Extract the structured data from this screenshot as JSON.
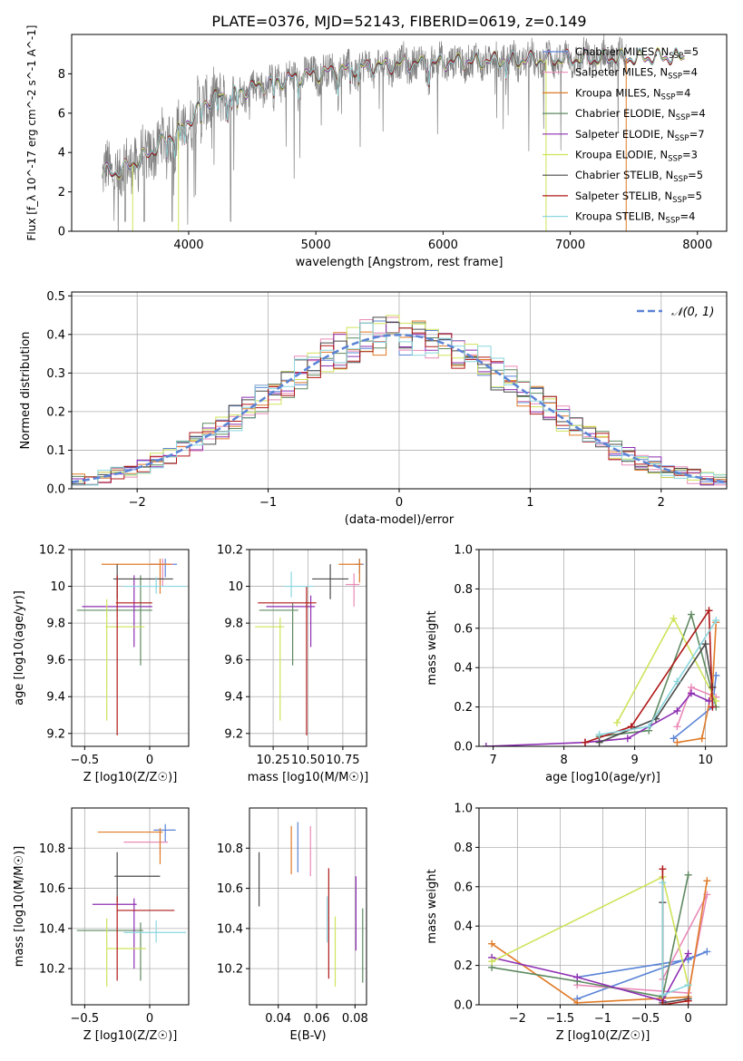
{
  "title": "PLATE=0376, MJD=52143, FIBERID=0619, z=0.149",
  "colors": {
    "Chabrier MILES": "#5b84d6",
    "Salpeter MILES": "#e98bb8",
    "Kroupa MILES": "#e07b28",
    "Chabrier ELODIE": "#5f8a62",
    "Salpeter ELODIE": "#8e2fb3",
    "Kroupa ELODIE": "#cfe35a",
    "Chabrier STELIB": "#4a4a4a",
    "Salpeter STELIB": "#b01818",
    "Kroupa STELIB": "#8ad6de",
    "data": "#808080"
  },
  "chart_data": [
    {
      "id": "spectrum",
      "type": "line",
      "xlabel": "wavelength [Angstrom, rest frame]",
      "ylabel": "Flux [f_λ 10^-17 erg cm^-2 s^-1 A^-1]",
      "xlim": [
        3080,
        8230
      ],
      "ylim": [
        0,
        10
      ],
      "xticks": [
        4000,
        5000,
        6000,
        7000,
        8000
      ],
      "yticks": [
        0,
        2,
        4,
        6,
        8
      ],
      "legend": "top-right",
      "legend_entries": [
        {
          "model": "Chabrier MILES",
          "nssp": 5
        },
        {
          "model": "Salpeter MILES",
          "nssp": 4
        },
        {
          "model": "Kroupa MILES",
          "nssp": 4
        },
        {
          "model": "Chabrier ELODIE",
          "nssp": 4
        },
        {
          "model": "Salpeter ELODIE",
          "nssp": 7
        },
        {
          "model": "Kroupa ELODIE",
          "nssp": 3
        },
        {
          "model": "Chabrier STELIB",
          "nssp": 5
        },
        {
          "model": "Salpeter STELIB",
          "nssp": 5
        },
        {
          "model": "Kroupa STELIB",
          "nssp": 4
        }
      ],
      "continuum": [
        [
          3320,
          3.0
        ],
        [
          3450,
          3.0
        ],
        [
          3550,
          3.4
        ],
        [
          3700,
          4.0
        ],
        [
          3800,
          4.6
        ],
        [
          3900,
          5.0
        ],
        [
          4000,
          5.6
        ],
        [
          4100,
          6.4
        ],
        [
          4200,
          6.8
        ],
        [
          4300,
          6.9
        ],
        [
          4400,
          7.1
        ],
        [
          4500,
          7.3
        ],
        [
          4700,
          7.6
        ],
        [
          4900,
          7.9
        ],
        [
          5100,
          8.1
        ],
        [
          5300,
          8.3
        ],
        [
          5500,
          8.4
        ],
        [
          5700,
          8.5
        ],
        [
          5900,
          8.55
        ],
        [
          6100,
          8.6
        ],
        [
          6300,
          8.65
        ],
        [
          6500,
          8.7
        ],
        [
          6700,
          8.7
        ],
        [
          6900,
          8.75
        ],
        [
          7100,
          8.75
        ],
        [
          7300,
          8.8
        ],
        [
          7500,
          8.8
        ],
        [
          7700,
          8.85
        ],
        [
          7900,
          8.85
        ]
      ],
      "model_range": [
        3320,
        7900
      ],
      "data_range": [
        3320,
        7440
      ]
    },
    {
      "id": "residuals",
      "type": "line",
      "xlabel": "(data-model)/error",
      "ylabel": "Normed distribution",
      "xlim": [
        -2.5,
        2.5
      ],
      "ylim": [
        0,
        0.51
      ],
      "xticks": [
        -2,
        -1,
        0,
        1,
        2
      ],
      "yticks": [
        0.0,
        0.1,
        0.2,
        0.3,
        0.4,
        0.5
      ],
      "legend": "top-right",
      "legend_label": "N(0,1)",
      "bin_width": 0.1
    },
    {
      "id": "age-vs-z",
      "type": "scatter",
      "xlabel": "Z [log10(Z/Z☉)]",
      "ylabel": "age  [log10(age/yr)]",
      "xlim": [
        -0.6,
        0.3
      ],
      "ylim": [
        9.13,
        10.2
      ],
      "xticks": [
        -0.5,
        0.0
      ],
      "yticks": [
        9.2,
        9.4,
        9.6,
        9.8,
        10.0,
        10.2
      ],
      "points": [
        {
          "model": "Chabrier MILES",
          "x": 0.12,
          "xlo": 0.0,
          "xhi": 0.21,
          "y": 10.12,
          "ylo": 10.05,
          "yhi": 10.15
        },
        {
          "model": "Salpeter MILES",
          "x": 0.1,
          "xlo": 0.0,
          "xhi": 0.18,
          "y": 10.12,
          "ylo": 10.0,
          "yhi": 10.15
        },
        {
          "model": "Kroupa MILES",
          "x": 0.08,
          "xlo": -0.37,
          "xhi": 0.17,
          "y": 10.12,
          "ylo": 9.96,
          "yhi": 10.15
        },
        {
          "model": "Chabrier ELODIE",
          "x": -0.07,
          "xlo": -0.56,
          "xhi": 0.02,
          "y": 9.87,
          "ylo": 9.57,
          "yhi": 10.06
        },
        {
          "model": "Salpeter ELODIE",
          "x": -0.12,
          "xlo": -0.52,
          "xhi": 0.02,
          "y": 9.89,
          "ylo": 9.67,
          "yhi": 10.06
        },
        {
          "model": "Kroupa ELODIE",
          "x": -0.33,
          "xlo": -0.34,
          "xhi": -0.04,
          "y": 9.78,
          "ylo": 9.27,
          "yhi": 9.93
        },
        {
          "model": "Chabrier STELIB",
          "x": -0.25,
          "xlo": -0.28,
          "xhi": 0.18,
          "y": 10.04,
          "ylo": 9.93,
          "yhi": 10.12
        },
        {
          "model": "Salpeter STELIB",
          "x": -0.25,
          "xlo": -0.26,
          "xhi": 0.02,
          "y": 9.91,
          "ylo": 9.19,
          "yhi": 10.06
        },
        {
          "model": "Kroupa STELIB",
          "x": 0.05,
          "xlo": -0.2,
          "xhi": 0.28,
          "y": 10.0,
          "ylo": 9.96,
          "yhi": 10.05
        }
      ]
    },
    {
      "id": "age-vs-mass",
      "type": "scatter",
      "xlabel": "mass [log10(M/M☉)]",
      "ylabel": "",
      "xlim": [
        10.08,
        10.92
      ],
      "ylim": [
        9.13,
        10.2
      ],
      "xticks": [
        10.25,
        10.5,
        10.75
      ],
      "xtick_labels": [
        "10.25",
        "10.50",
        "10.75"
      ],
      "yticks": [
        9.2,
        9.4,
        9.6,
        9.8,
        10.0,
        10.2
      ],
      "points": [
        {
          "model": "Chabrier MILES",
          "x": 10.87,
          "xlo": 10.84,
          "xhi": 10.9,
          "y": 10.12,
          "ylo": 10.07,
          "yhi": 10.15
        },
        {
          "model": "Salpeter MILES",
          "x": 10.83,
          "xlo": 10.77,
          "xhi": 10.87,
          "y": 10.01,
          "ylo": 9.89,
          "yhi": 10.07
        },
        {
          "model": "Kroupa MILES",
          "x": 10.87,
          "xlo": 10.72,
          "xhi": 10.89,
          "y": 10.12,
          "ylo": 10.02,
          "yhi": 10.15
        },
        {
          "model": "Chabrier ELODIE",
          "x": 10.39,
          "xlo": 10.15,
          "xhi": 10.43,
          "y": 9.87,
          "ylo": 9.57,
          "yhi": 9.91
        },
        {
          "model": "Salpeter ELODIE",
          "x": 10.52,
          "xlo": 10.2,
          "xhi": 10.55,
          "y": 9.89,
          "ylo": 9.67,
          "yhi": 9.95
        },
        {
          "model": "Kroupa ELODIE",
          "x": 10.3,
          "xlo": 10.12,
          "xhi": 10.33,
          "y": 9.78,
          "ylo": 9.27,
          "yhi": 9.83
        },
        {
          "model": "Chabrier STELIB",
          "x": 10.66,
          "xlo": 10.53,
          "xhi": 10.79,
          "y": 10.04,
          "ylo": 9.93,
          "yhi": 10.12
        },
        {
          "model": "Salpeter STELIB",
          "x": 10.49,
          "xlo": 10.14,
          "xhi": 10.56,
          "y": 9.91,
          "ylo": 9.19,
          "yhi": 10.0
        },
        {
          "model": "Kroupa STELIB",
          "x": 10.38,
          "xlo": 10.33,
          "xhi": 10.54,
          "y": 10.0,
          "ylo": 9.94,
          "yhi": 10.08
        }
      ]
    },
    {
      "id": "massweight-vs-age",
      "type": "line",
      "xlabel": "age  [log10(age/yr)]",
      "ylabel": "mass weight",
      "xlim": [
        6.8,
        10.3
      ],
      "ylim": [
        0,
        1
      ],
      "xticks": [
        7,
        8,
        9,
        10
      ],
      "yticks": [
        0.0,
        0.2,
        0.4,
        0.6,
        0.8,
        1.0
      ],
      "series": [
        {
          "model": "Chabrier MILES",
          "x": [
            9.55,
            10.1,
            10.15
          ],
          "y": [
            0.04,
            0.2,
            0.36
          ]
        },
        {
          "model": "Salpeter MILES",
          "x": [
            9.6,
            9.8,
            10.15
          ],
          "y": [
            0.1,
            0.3,
            0.25
          ]
        },
        {
          "model": "Kroupa MILES",
          "x": [
            9.6,
            9.95,
            10.1,
            10.15
          ],
          "y": [
            0.02,
            0.04,
            0.3,
            0.63
          ]
        },
        {
          "model": "Chabrier ELODIE",
          "x": [
            8.5,
            9.2,
            9.8,
            10.15
          ],
          "y": [
            0.05,
            0.08,
            0.67,
            0.2
          ]
        },
        {
          "model": "Salpeter ELODIE",
          "x": [
            6.9,
            8.3,
            8.9,
            9.6,
            9.8,
            10.05
          ],
          "y": [
            0.0,
            0.02,
            0.04,
            0.18,
            0.27,
            0.23
          ]
        },
        {
          "model": "Kroupa ELODIE",
          "x": [
            8.75,
            9.55,
            10.15
          ],
          "y": [
            0.12,
            0.65,
            0.23
          ]
        },
        {
          "model": "Chabrier STELIB",
          "x": [
            8.5,
            9.3,
            10.0,
            10.1
          ],
          "y": [
            0.02,
            0.14,
            0.52,
            0.3
          ]
        },
        {
          "model": "Salpeter STELIB",
          "x": [
            8.3,
            8.95,
            10.05,
            10.1
          ],
          "y": [
            0.02,
            0.1,
            0.69,
            0.2
          ]
        },
        {
          "model": "Kroupa STELIB",
          "x": [
            8.5,
            9.2,
            9.6,
            10.15
          ],
          "y": [
            0.06,
            0.1,
            0.33,
            0.64
          ]
        }
      ]
    },
    {
      "id": "mass-vs-z",
      "type": "scatter",
      "xlabel": "Z [log10(Z/Z☉)]",
      "ylabel": "mass [log10(M/M☉)]",
      "xlim": [
        -0.6,
        0.3
      ],
      "ylim": [
        10.02,
        11.0
      ],
      "xticks": [
        -0.5,
        0.0
      ],
      "yticks": [
        10.2,
        10.4,
        10.6,
        10.8
      ],
      "points": [
        {
          "model": "Chabrier MILES",
          "x": 0.12,
          "xlo": 0.03,
          "xhi": 0.2,
          "y": 10.89,
          "ylo": 10.83,
          "yhi": 10.92
        },
        {
          "model": "Salpeter MILES",
          "x": 0.08,
          "xlo": -0.2,
          "xhi": 0.14,
          "y": 10.83,
          "ylo": 10.77,
          "yhi": 10.88
        },
        {
          "model": "Kroupa MILES",
          "x": 0.08,
          "xlo": -0.4,
          "xhi": 0.1,
          "y": 10.88,
          "ylo": 10.72,
          "yhi": 10.9
        },
        {
          "model": "Chabrier ELODIE",
          "x": -0.07,
          "xlo": -0.56,
          "xhi": -0.05,
          "y": 10.39,
          "ylo": 10.14,
          "yhi": 10.43
        },
        {
          "model": "Salpeter ELODIE",
          "x": -0.12,
          "xlo": -0.44,
          "xhi": -0.1,
          "y": 10.52,
          "ylo": 10.2,
          "yhi": 10.55
        },
        {
          "model": "Kroupa ELODIE",
          "x": -0.33,
          "xlo": -0.33,
          "xhi": -0.03,
          "y": 10.3,
          "ylo": 10.11,
          "yhi": 10.45
        },
        {
          "model": "Chabrier STELIB",
          "x": -0.25,
          "xlo": -0.27,
          "xhi": 0.08,
          "y": 10.66,
          "ylo": 10.53,
          "yhi": 10.78
        },
        {
          "model": "Salpeter STELIB",
          "x": -0.25,
          "xlo": -0.25,
          "xhi": 0.19,
          "y": 10.49,
          "ylo": 10.14,
          "yhi": 10.56
        },
        {
          "model": "Kroupa STELIB",
          "x": 0.05,
          "xlo": -0.2,
          "xhi": 0.28,
          "y": 10.38,
          "ylo": 10.33,
          "yhi": 10.44
        }
      ]
    },
    {
      "id": "mass-vs-ebv",
      "type": "scatter",
      "xlabel": "E(B-V)",
      "ylabel": "",
      "xlim": [
        0.025,
        0.086
      ],
      "ylim": [
        10.02,
        11.0
      ],
      "xticks": [
        0.04,
        0.06,
        0.08
      ],
      "xtick_labels": [
        "0.04",
        "0.06",
        "0.08"
      ],
      "yticks": [
        10.2,
        10.4,
        10.6,
        10.8
      ],
      "points": [
        {
          "model": "Chabrier STELIB",
          "x": 0.03,
          "ylo": 10.51,
          "yhi": 10.78
        },
        {
          "model": "Kroupa MILES",
          "x": 0.0468,
          "ylo": 10.67,
          "yhi": 10.91
        },
        {
          "model": "Chabrier MILES",
          "x": 0.0502,
          "ylo": 10.68,
          "yhi": 10.93
        },
        {
          "model": "Salpeter MILES",
          "x": 0.0568,
          "ylo": 10.66,
          "yhi": 10.91
        },
        {
          "model": "Kroupa STELIB",
          "x": 0.0655,
          "ylo": 10.33,
          "yhi": 10.56
        },
        {
          "model": "Salpeter STELIB",
          "x": 0.0663,
          "ylo": 10.15,
          "yhi": 10.7
        },
        {
          "model": "Kroupa ELODIE",
          "x": 0.0697,
          "ylo": 10.11,
          "yhi": 10.46
        },
        {
          "model": "Salpeter ELODIE",
          "x": 0.0805,
          "ylo": 10.29,
          "yhi": 10.66
        },
        {
          "model": "Chabrier ELODIE",
          "x": 0.084,
          "ylo": 10.13,
          "yhi": 10.5
        }
      ]
    },
    {
      "id": "massweight-vs-z",
      "type": "line",
      "xlabel": "Z [log10(Z/Z☉)]",
      "ylabel": "mass weight",
      "xlim": [
        -2.45,
        0.45
      ],
      "ylim": [
        0,
        1
      ],
      "xticks": [
        -2.0,
        -1.5,
        -1.0,
        -0.5,
        0.0
      ],
      "yticks": [
        0.0,
        0.2,
        0.4,
        0.6,
        0.8,
        1.0
      ],
      "series": [
        {
          "model": "Chabrier MILES",
          "x": [
            -1.3,
            0.0,
            0.22,
            -1.3
          ],
          "y": [
            0.14,
            0.23,
            0.27,
            0.03
          ]
        },
        {
          "model": "Salpeter MILES",
          "x": [
            -1.3,
            0.0,
            0.22,
            -0.3
          ],
          "y": [
            0.1,
            0.06,
            0.56,
            0.13
          ]
        },
        {
          "model": "Kroupa MILES",
          "x": [
            -2.3,
            -1.3,
            0.0,
            0.22
          ],
          "y": [
            0.31,
            0.01,
            0.04,
            0.63
          ]
        },
        {
          "model": "Chabrier ELODIE",
          "x": [
            -2.3,
            -1.3,
            -0.3,
            0.0
          ],
          "y": [
            0.19,
            0.12,
            0.04,
            0.66
          ]
        },
        {
          "model": "Salpeter ELODIE",
          "x": [
            -2.3,
            -1.3,
            -0.3,
            0.0
          ],
          "y": [
            0.24,
            0.14,
            0.02,
            0.26
          ]
        },
        {
          "model": "Kroupa ELODIE",
          "x": [
            -2.3,
            -0.3,
            0.0
          ],
          "y": [
            0.22,
            0.65,
            0.1
          ]
        },
        {
          "model": "Chabrier STELIB",
          "x": [
            -0.3,
            -0.3,
            0.0
          ],
          "y": [
            0.52,
            0.01,
            0.03
          ]
        },
        {
          "model": "Salpeter STELIB",
          "x": [
            -0.3,
            -0.3,
            0.0
          ],
          "y": [
            0.69,
            0.0,
            0.02
          ]
        },
        {
          "model": "Kroupa STELIB",
          "x": [
            -0.3,
            -0.3,
            0.0
          ],
          "y": [
            0.62,
            0.05,
            0.1
          ]
        }
      ]
    }
  ]
}
